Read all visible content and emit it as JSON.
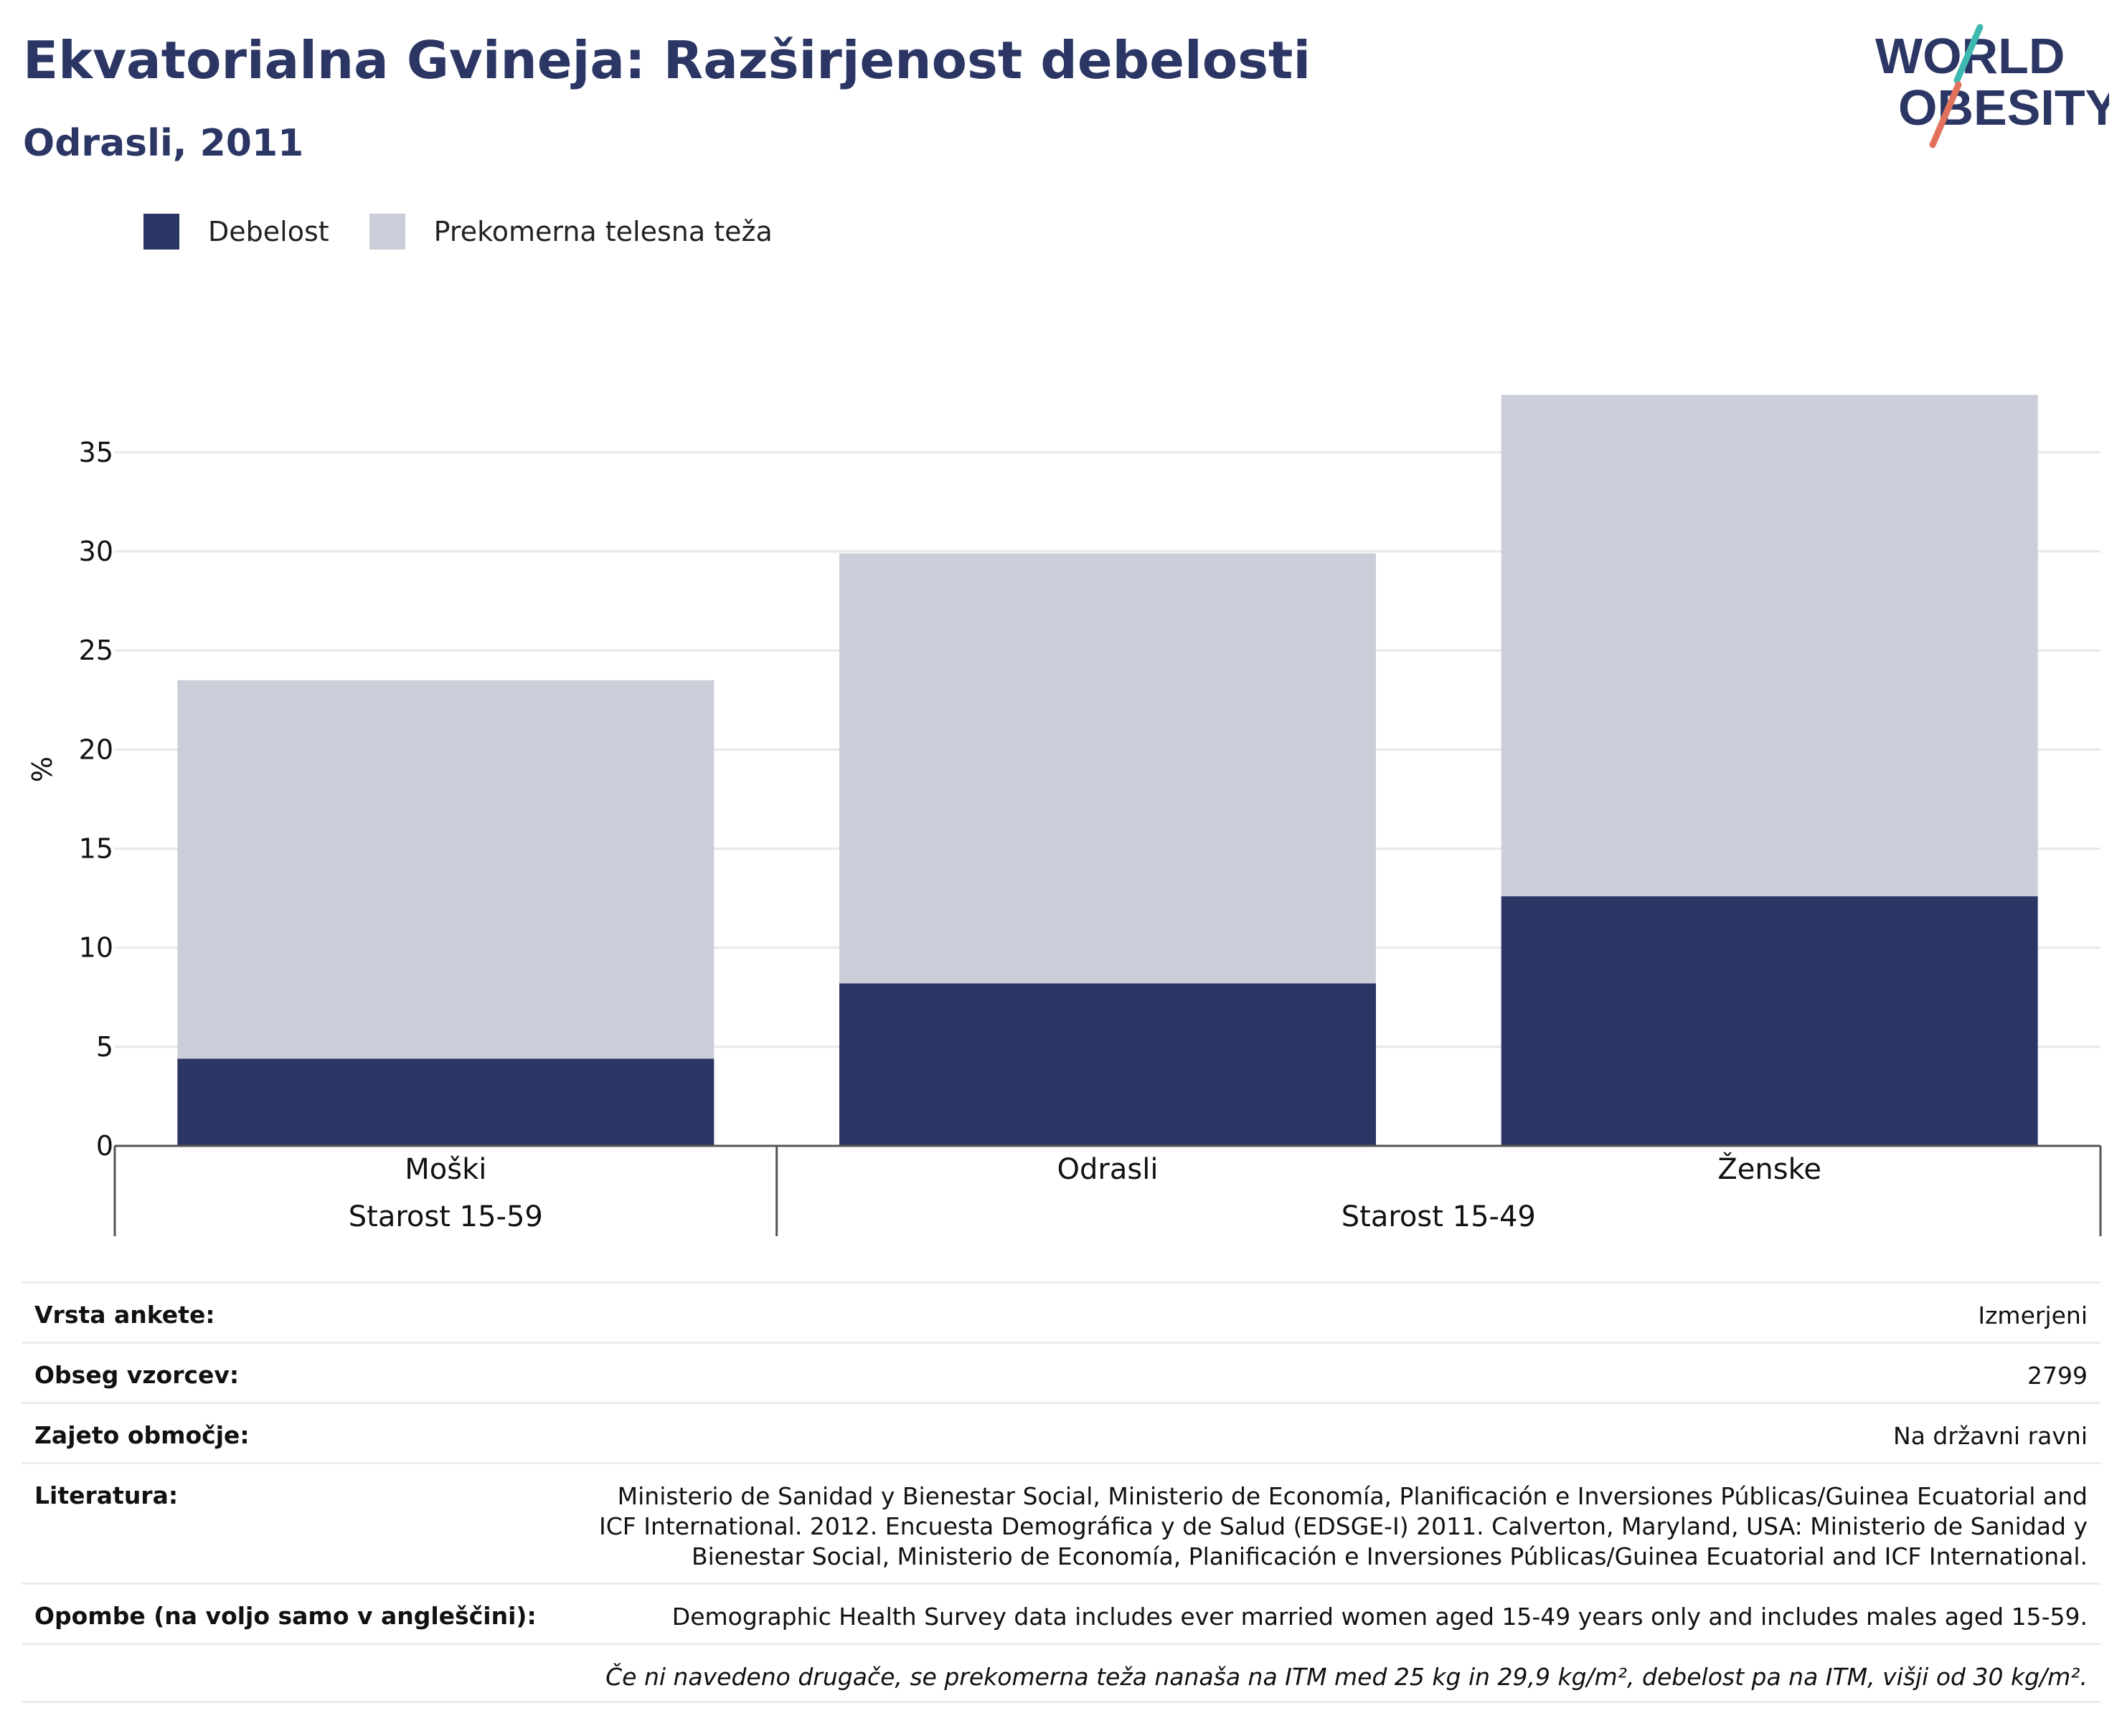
{
  "header": {
    "title": "Ekvatorialna Gvineja: Razširjenost debelosti",
    "subtitle": "Odrasli, 2011"
  },
  "logo": {
    "line1": "WORLD",
    "line2": "OBESITY",
    "text_color": "#2b3664",
    "slash_colors": [
      "#3fb9b0",
      "#e2725b"
    ]
  },
  "colors": {
    "obesity": "#2b3664",
    "overweight": "#cbcdd9",
    "grid": "#e8e8e8",
    "axis": "#555555"
  },
  "legend": [
    {
      "label": "Debelost",
      "color": "#2b3664"
    },
    {
      "label": "Prekomerna telesna teža",
      "color": "#cbcdd9"
    }
  ],
  "chart_data": {
    "type": "bar",
    "stacked": true,
    "categories": [
      "Moški",
      "Odrasli",
      "Ženske"
    ],
    "groups": [
      {
        "label": "Starost 15-59",
        "categories": [
          "Moški"
        ]
      },
      {
        "label": "Starost 15-49",
        "categories": [
          "Odrasli",
          "Ženske"
        ]
      }
    ],
    "series": [
      {
        "name": "Debelost",
        "values": [
          4.4,
          8.2,
          12.6
        ]
      },
      {
        "name": "Prekomerna telesna teža",
        "values": [
          19.1,
          21.7,
          25.3
        ]
      }
    ],
    "ylabel": "%",
    "ylim": [
      0,
      38
    ],
    "yticks": [
      0,
      5,
      10,
      15,
      20,
      25,
      30,
      35
    ],
    "grid": true,
    "legend_position": "top-left"
  },
  "info": {
    "rows": [
      {
        "label": "Vrsta ankete:",
        "value": "Izmerjeni"
      },
      {
        "label": "Obseg vzorcev:",
        "value": "2799"
      },
      {
        "label": "Zajeto območje:",
        "value": "Na državni ravni"
      },
      {
        "label": "Literatura:",
        "value": "Ministerio de Sanidad y Bienestar Social, Ministerio de Economía, Planificación e Inversiones Públicas/Guinea Ecuatorial and ICF International. 2012. Encuesta Demográfica y de Salud (EDSGE-I) 2011. Calverton, Maryland, USA: Ministerio de Sanidad y Bienestar Social, Ministerio de Economía, Planificación e Inversiones Públicas/Guinea Ecuatorial and ICF International."
      },
      {
        "label": "Opombe (na voljo samo v angleščini):",
        "value": "Demographic Health Survey data includes ever married women aged 15-49 years only and includes males aged 15-59."
      }
    ],
    "footnote": "Če ni navedeno drugače, se prekomerna teža nanaša na ITM med 25 kg in 29,9 kg/m², debelost pa na ITM, višji od 30 kg/m²."
  }
}
